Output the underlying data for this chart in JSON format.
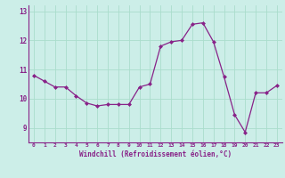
{
  "x": [
    0,
    1,
    2,
    3,
    4,
    5,
    6,
    7,
    8,
    9,
    10,
    11,
    12,
    13,
    14,
    15,
    16,
    17,
    18,
    19,
    20,
    21,
    22,
    23
  ],
  "y": [
    10.8,
    10.6,
    10.4,
    10.4,
    10.1,
    9.85,
    9.75,
    9.8,
    9.8,
    9.8,
    10.4,
    10.5,
    11.8,
    11.95,
    12.0,
    12.55,
    12.6,
    11.95,
    10.75,
    9.45,
    8.85,
    10.2,
    10.2,
    10.45
  ],
  "line_color": "#882288",
  "marker": "D",
  "marker_size": 2.0,
  "bg_color": "#cceee8",
  "grid_color": "#aaddcc",
  "xlabel": "Windchill (Refroidissement éolien,°C)",
  "xlabel_color": "#882288",
  "tick_color": "#882288",
  "ylim": [
    8.5,
    13.2
  ],
  "yticks": [
    9,
    10,
    11,
    12,
    13
  ],
  "xlim": [
    -0.5,
    23.5
  ],
  "xticks": [
    0,
    1,
    2,
    3,
    4,
    5,
    6,
    7,
    8,
    9,
    10,
    11,
    12,
    13,
    14,
    15,
    16,
    17,
    18,
    19,
    20,
    21,
    22,
    23
  ]
}
